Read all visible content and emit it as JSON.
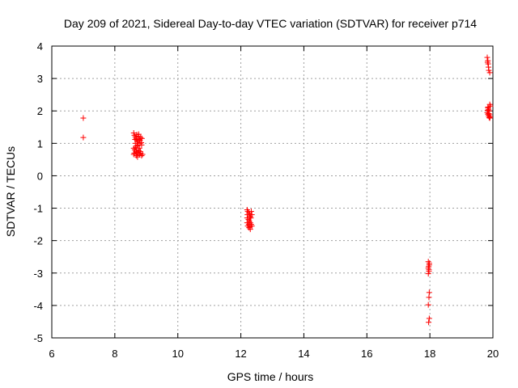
{
  "chart_data": {
    "type": "scatter",
    "title": "Day 209 of 2021, Sidereal Day-to-day VTEC variation (SDTVAR) for receiver p714",
    "xlabel": "GPS time / hours",
    "ylabel": "SDTVAR / TECUs",
    "xlim": [
      6,
      20
    ],
    "ylim": [
      -5,
      4
    ],
    "xticks": [
      "6",
      "8",
      "10",
      "12",
      "14",
      "16",
      "18",
      "20"
    ],
    "yticks": [
      "-5",
      "-4",
      "-3",
      "-2",
      "-1",
      "0",
      "1",
      "2",
      "3",
      "4"
    ],
    "grid": true,
    "marker": "+",
    "color": "#ff0000",
    "series": [
      {
        "name": "p714",
        "points": [
          [
            7.0,
            1.78
          ],
          [
            7.0,
            1.18
          ],
          [
            8.6,
            1.32
          ],
          [
            8.62,
            1.25
          ],
          [
            8.65,
            1.2
          ],
          [
            8.68,
            1.15
          ],
          [
            8.7,
            1.1
          ],
          [
            8.72,
            1.05
          ],
          [
            8.75,
            1.22
          ],
          [
            8.78,
            1.12
          ],
          [
            8.8,
            1.0
          ],
          [
            8.82,
            1.18
          ],
          [
            8.85,
            0.95
          ],
          [
            8.65,
            1.0
          ],
          [
            8.7,
            0.92
          ],
          [
            8.6,
            0.85
          ],
          [
            8.63,
            0.8
          ],
          [
            8.67,
            0.75
          ],
          [
            8.7,
            0.72
          ],
          [
            8.73,
            0.68
          ],
          [
            8.76,
            0.78
          ],
          [
            8.79,
            0.65
          ],
          [
            8.82,
            0.7
          ],
          [
            8.85,
            0.62
          ],
          [
            8.62,
            0.7
          ],
          [
            8.68,
            0.62
          ],
          [
            8.72,
            0.58
          ],
          [
            8.66,
            0.88
          ],
          [
            8.78,
            0.85
          ],
          [
            8.8,
            1.08
          ],
          [
            8.74,
            0.95
          ],
          [
            8.84,
            1.02
          ],
          [
            8.88,
            0.66
          ],
          [
            8.6,
            0.66
          ],
          [
            8.76,
            1.28
          ],
          [
            8.7,
            1.27
          ],
          [
            8.64,
            1.12
          ],
          [
            8.86,
            1.15
          ],
          [
            8.69,
            0.8
          ],
          [
            8.81,
            0.75
          ],
          [
            12.2,
            -1.05
          ],
          [
            12.22,
            -1.1
          ],
          [
            12.25,
            -1.15
          ],
          [
            12.28,
            -1.2
          ],
          [
            12.3,
            -1.25
          ],
          [
            12.2,
            -1.3
          ],
          [
            12.24,
            -1.35
          ],
          [
            12.27,
            -1.4
          ],
          [
            12.3,
            -1.45
          ],
          [
            12.33,
            -1.5
          ],
          [
            12.22,
            -1.55
          ],
          [
            12.26,
            -1.6
          ],
          [
            12.3,
            -1.65
          ],
          [
            12.35,
            -1.55
          ],
          [
            12.32,
            -1.3
          ],
          [
            12.35,
            -1.2
          ],
          [
            12.2,
            -1.45
          ],
          [
            12.25,
            -1.5
          ],
          [
            12.28,
            -1.3
          ],
          [
            12.33,
            -1.1
          ],
          [
            12.21,
            -1.2
          ],
          [
            12.29,
            -1.58
          ],
          [
            17.95,
            -2.65
          ],
          [
            17.98,
            -2.75
          ],
          [
            17.95,
            -2.85
          ],
          [
            17.97,
            -2.95
          ],
          [
            17.95,
            -3.02
          ],
          [
            17.98,
            -2.7
          ],
          [
            17.96,
            -2.8
          ],
          [
            17.97,
            -2.9
          ],
          [
            17.98,
            -3.6
          ],
          [
            17.97,
            -3.75
          ],
          [
            17.95,
            -3.98
          ],
          [
            17.98,
            -4.4
          ],
          [
            17.96,
            -4.52
          ],
          [
            19.82,
            3.65
          ],
          [
            19.84,
            3.55
          ],
          [
            19.85,
            3.45
          ],
          [
            19.86,
            3.35
          ],
          [
            19.87,
            3.25
          ],
          [
            19.9,
            3.18
          ],
          [
            19.83,
            3.5
          ],
          [
            19.84,
            2.1
          ],
          [
            19.86,
            2.05
          ],
          [
            19.88,
            2.0
          ],
          [
            19.82,
            1.95
          ],
          [
            19.84,
            1.9
          ],
          [
            19.86,
            1.85
          ],
          [
            19.88,
            1.8
          ],
          [
            19.9,
            1.78
          ],
          [
            19.9,
            2.2
          ],
          [
            19.92,
            2.15
          ],
          [
            19.85,
            2.12
          ],
          [
            19.87,
            1.92
          ],
          [
            19.89,
            1.88
          ],
          [
            19.91,
            1.82
          ],
          [
            19.83,
            2.02
          ]
        ]
      }
    ]
  }
}
